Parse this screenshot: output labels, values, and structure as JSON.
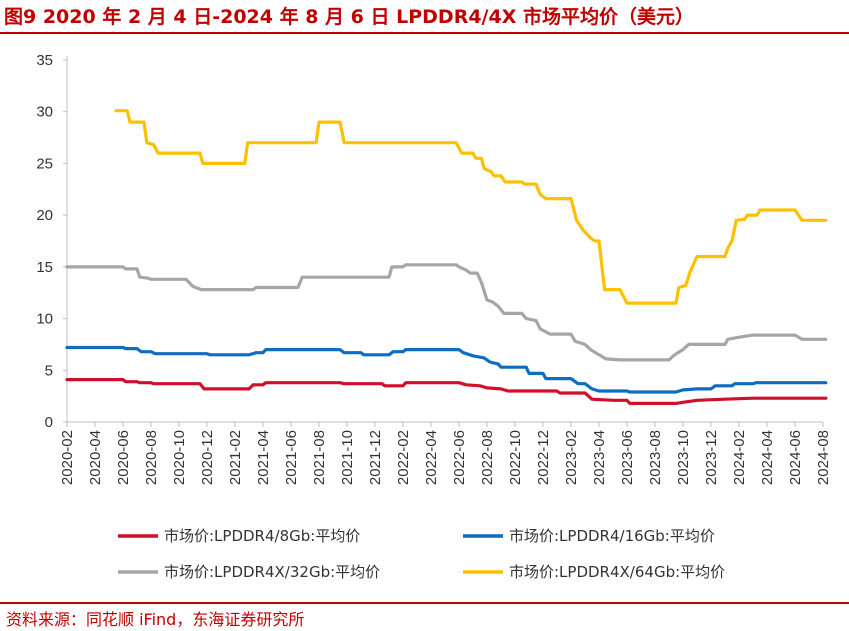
{
  "title": "图9  2020 年 2 月 4 日-2024 年 8 月 6 日 LPDDR4/4X 市场平均价（美元）",
  "source": "资料来源：同花顺 iFind，东海证券研究所",
  "chart_data": {
    "type": "line",
    "ylim": [
      0,
      35
    ],
    "yticks": [
      "0",
      "5",
      "10",
      "15",
      "20",
      "25",
      "30",
      "35"
    ],
    "xlim": [
      "2020-02",
      "2024-08"
    ],
    "xticks": [
      "2020-02",
      "2020-04",
      "2020-06",
      "2020-08",
      "2020-10",
      "2020-12",
      "2021-02",
      "2021-04",
      "2021-06",
      "2021-08",
      "2021-10",
      "2021-12",
      "2022-02",
      "2022-04",
      "2022-06",
      "2022-08",
      "2022-10",
      "2022-12",
      "2023-02",
      "2023-04",
      "2023-06",
      "2023-08",
      "2023-10",
      "2023-12",
      "2024-02",
      "2024-04",
      "2024-06",
      "2024-08"
    ],
    "grid": false,
    "legend_position": "bottom",
    "series": [
      {
        "name": "市场价:LPDDR4/8Gb:平均价",
        "color": "#d0102b",
        "points": [
          [
            "2020-02",
            4.1
          ],
          [
            "2020-06",
            4.1
          ],
          [
            "2020-06.2",
            3.9
          ],
          [
            "2020-07",
            3.9
          ],
          [
            "2020-07.2",
            3.8
          ],
          [
            "2020-08",
            3.8
          ],
          [
            "2020-08.2",
            3.7
          ],
          [
            "2020-11.5",
            3.7
          ],
          [
            "2020-11.8",
            3.2
          ],
          [
            "2021-03",
            3.2
          ],
          [
            "2021-03.3",
            3.6
          ],
          [
            "2021-04",
            3.6
          ],
          [
            "2021-04.2",
            3.8
          ],
          [
            "2021-09.5",
            3.8
          ],
          [
            "2021-09.8",
            3.7
          ],
          [
            "2021-12.5",
            3.7
          ],
          [
            "2021-12.7",
            3.5
          ],
          [
            "2022-02",
            3.5
          ],
          [
            "2022-02.2",
            3.8
          ],
          [
            "2022-06",
            3.8
          ],
          [
            "2022-06.5",
            3.6
          ],
          [
            "2022-07.5",
            3.5
          ],
          [
            "2022-08",
            3.3
          ],
          [
            "2022-09",
            3.2
          ],
          [
            "2022-09.5",
            3.0
          ],
          [
            "2023-01",
            3.0
          ],
          [
            "2023-01.2",
            2.8
          ],
          [
            "2023-03",
            2.8
          ],
          [
            "2023-03.5",
            2.2
          ],
          [
            "2023-05",
            2.1
          ],
          [
            "2023-06",
            2.1
          ],
          [
            "2023-06.2",
            1.8
          ],
          [
            "2023-09.5",
            1.8
          ],
          [
            "2023-10",
            1.9
          ],
          [
            "2023-11",
            2.1
          ],
          [
            "2024-01",
            2.2
          ],
          [
            "2024-03",
            2.3
          ],
          [
            "2024-08.2",
            2.3
          ]
        ]
      },
      {
        "name": "市场价:LPDDR4/16Gb:平均价",
        "color": "#0f6cc0",
        "points": [
          [
            "2020-02",
            7.2
          ],
          [
            "2020-06",
            7.2
          ],
          [
            "2020-06.2",
            7.1
          ],
          [
            "2020-07",
            7.1
          ],
          [
            "2020-07.3",
            6.8
          ],
          [
            "2020-08",
            6.8
          ],
          [
            "2020-08.3",
            6.6
          ],
          [
            "2020-12",
            6.6
          ],
          [
            "2020-12.2",
            6.5
          ],
          [
            "2021-03",
            6.5
          ],
          [
            "2021-03.5",
            6.7
          ],
          [
            "2021-04",
            6.7
          ],
          [
            "2021-04.2",
            7.0
          ],
          [
            "2021-09.5",
            7.0
          ],
          [
            "2021-09.8",
            6.7
          ],
          [
            "2021-11",
            6.7
          ],
          [
            "2021-11.2",
            6.5
          ],
          [
            "2022-01",
            6.5
          ],
          [
            "2022-01.3",
            6.8
          ],
          [
            "2022-02",
            6.8
          ],
          [
            "2022-02.2",
            7.0
          ],
          [
            "2022-06",
            7.0
          ],
          [
            "2022-06.3",
            6.7
          ],
          [
            "2022-07",
            6.4
          ],
          [
            "2022-07.8",
            6.2
          ],
          [
            "2022-08.2",
            5.8
          ],
          [
            "2022-08.8",
            5.6
          ],
          [
            "2022-09",
            5.3
          ],
          [
            "2022-10.8",
            5.3
          ],
          [
            "2022-11",
            4.7
          ],
          [
            "2022-12",
            4.7
          ],
          [
            "2022-12.2",
            4.2
          ],
          [
            "2023-02",
            4.2
          ],
          [
            "2023-02.5",
            3.7
          ],
          [
            "2023-03",
            3.7
          ],
          [
            "2023-03.5",
            3.2
          ],
          [
            "2023-04",
            3.0
          ],
          [
            "2023-06",
            3.0
          ],
          [
            "2023-06.2",
            2.9
          ],
          [
            "2023-09.5",
            2.9
          ],
          [
            "2023-10",
            3.1
          ],
          [
            "2023-11",
            3.2
          ],
          [
            "2023-12",
            3.2
          ],
          [
            "2023-12.3",
            3.5
          ],
          [
            "2024-01.5",
            3.5
          ],
          [
            "2024-01.7",
            3.7
          ],
          [
            "2024-03",
            3.7
          ],
          [
            "2024-03.2",
            3.8
          ],
          [
            "2024-08.2",
            3.8
          ]
        ]
      },
      {
        "name": "市场价:LPDDR4X/32Gb:平均价",
        "color": "#a6a6a6",
        "points": [
          [
            "2020-02",
            15.0
          ],
          [
            "2020-06",
            15.0
          ],
          [
            "2020-06.2",
            14.8
          ],
          [
            "2020-07",
            14.8
          ],
          [
            "2020-07.2",
            14.0
          ],
          [
            "2020-07.8",
            13.9
          ],
          [
            "2020-08",
            13.8
          ],
          [
            "2020-10.5",
            13.8
          ],
          [
            "2020-11",
            13.1
          ],
          [
            "2020-11.6",
            12.8
          ],
          [
            "2021-03.3",
            12.8
          ],
          [
            "2021-03.5",
            13.0
          ],
          [
            "2021-06.5",
            13.0
          ],
          [
            "2021-06.8",
            14.0
          ],
          [
            "2022-01",
            14.0
          ],
          [
            "2022-01.2",
            15.0
          ],
          [
            "2022-02",
            15.0
          ],
          [
            "2022-02.2",
            15.2
          ],
          [
            "2022-05.8",
            15.2
          ],
          [
            "2022-06",
            15.0
          ],
          [
            "2022-06.5",
            14.7
          ],
          [
            "2022-06.8",
            14.4
          ],
          [
            "2022-07.3",
            14.4
          ],
          [
            "2022-07.6",
            13.5
          ],
          [
            "2022-08",
            11.8
          ],
          [
            "2022-08.4",
            11.6
          ],
          [
            "2022-08.8",
            11.2
          ],
          [
            "2022-09.2",
            10.5
          ],
          [
            "2022-10.5",
            10.5
          ],
          [
            "2022-10.8",
            10.0
          ],
          [
            "2022-11.5",
            9.8
          ],
          [
            "2022-11.8",
            9.0
          ],
          [
            "2022-12.5",
            8.5
          ],
          [
            "2023-02",
            8.5
          ],
          [
            "2023-02.3",
            7.8
          ],
          [
            "2023-03",
            7.5
          ],
          [
            "2023-03.4",
            7.0
          ],
          [
            "2023-04",
            6.5
          ],
          [
            "2023-04.5",
            6.1
          ],
          [
            "2023-05.5",
            6.0
          ],
          [
            "2023-08",
            6.0
          ],
          [
            "2023-09",
            6.0
          ],
          [
            "2023-09.4",
            6.5
          ],
          [
            "2023-10",
            7.0
          ],
          [
            "2023-10.4",
            7.5
          ],
          [
            "2024-01",
            7.5
          ],
          [
            "2024-01.2",
            8.0
          ],
          [
            "2024-02",
            8.2
          ],
          [
            "2024-03",
            8.4
          ],
          [
            "2024-06",
            8.4
          ],
          [
            "2024-06.5",
            8.0
          ],
          [
            "2024-08.2",
            8.0
          ]
        ]
      },
      {
        "name": "市场价:LPDDR4X/64Gb:平均价",
        "color": "#ffc000",
        "points": [
          [
            "2020-05.5",
            30.1
          ],
          [
            "2020-06.3",
            30.1
          ],
          [
            "2020-06.5",
            29.0
          ],
          [
            "2020-07.5",
            29.0
          ],
          [
            "2020-07.7",
            27.0
          ],
          [
            "2020-08.2",
            26.8
          ],
          [
            "2020-08.5",
            26.0
          ],
          [
            "2020-11.5",
            26.0
          ],
          [
            "2020-11.7",
            25.0
          ],
          [
            "2021-02.7",
            25.0
          ],
          [
            "2021-02.9",
            27.0
          ],
          [
            "2021-07.8",
            27.0
          ],
          [
            "2021-08",
            29.0
          ],
          [
            "2021-09.5",
            29.0
          ],
          [
            "2021-09.8",
            27.0
          ],
          [
            "2022-05.8",
            27.0
          ],
          [
            "2022-06.2",
            26.0
          ],
          [
            "2022-07",
            26.0
          ],
          [
            "2022-07.2",
            25.5
          ],
          [
            "2022-07.6",
            25.5
          ],
          [
            "2022-07.8",
            24.5
          ],
          [
            "2022-08.3",
            24.2
          ],
          [
            "2022-08.5",
            23.8
          ],
          [
            "2022-09",
            23.8
          ],
          [
            "2022-09.3",
            23.2
          ],
          [
            "2022-10.5",
            23.2
          ],
          [
            "2022-10.7",
            23.0
          ],
          [
            "2022-11.5",
            23.0
          ],
          [
            "2022-11.8",
            22.0
          ],
          [
            "2022-12.2",
            21.6
          ],
          [
            "2023-02",
            21.6
          ],
          [
            "2023-02.4",
            19.5
          ],
          [
            "2023-02.9",
            18.5
          ],
          [
            "2023-03.4",
            17.8
          ],
          [
            "2023-03.7",
            17.5
          ],
          [
            "2023-04",
            17.5
          ],
          [
            "2023-04.4",
            12.8
          ],
          [
            "2023-05.5",
            12.8
          ],
          [
            "2023-06",
            11.5
          ],
          [
            "2023-09.5",
            11.5
          ],
          [
            "2023-09.7",
            13.0
          ],
          [
            "2023-10.2",
            13.2
          ],
          [
            "2023-10.5",
            14.5
          ],
          [
            "2023-11",
            16.0
          ],
          [
            "2024-01",
            16.0
          ],
          [
            "2024-01.2",
            16.8
          ],
          [
            "2024-01.5",
            17.5
          ],
          [
            "2024-01.8",
            19.5
          ],
          [
            "2024-02.4",
            19.6
          ],
          [
            "2024-02.6",
            20.0
          ],
          [
            "2024-03.3",
            20.0
          ],
          [
            "2024-03.5",
            20.5
          ],
          [
            "2024-06",
            20.5
          ],
          [
            "2024-06.5",
            19.5
          ],
          [
            "2024-08.2",
            19.5
          ]
        ]
      }
    ]
  }
}
